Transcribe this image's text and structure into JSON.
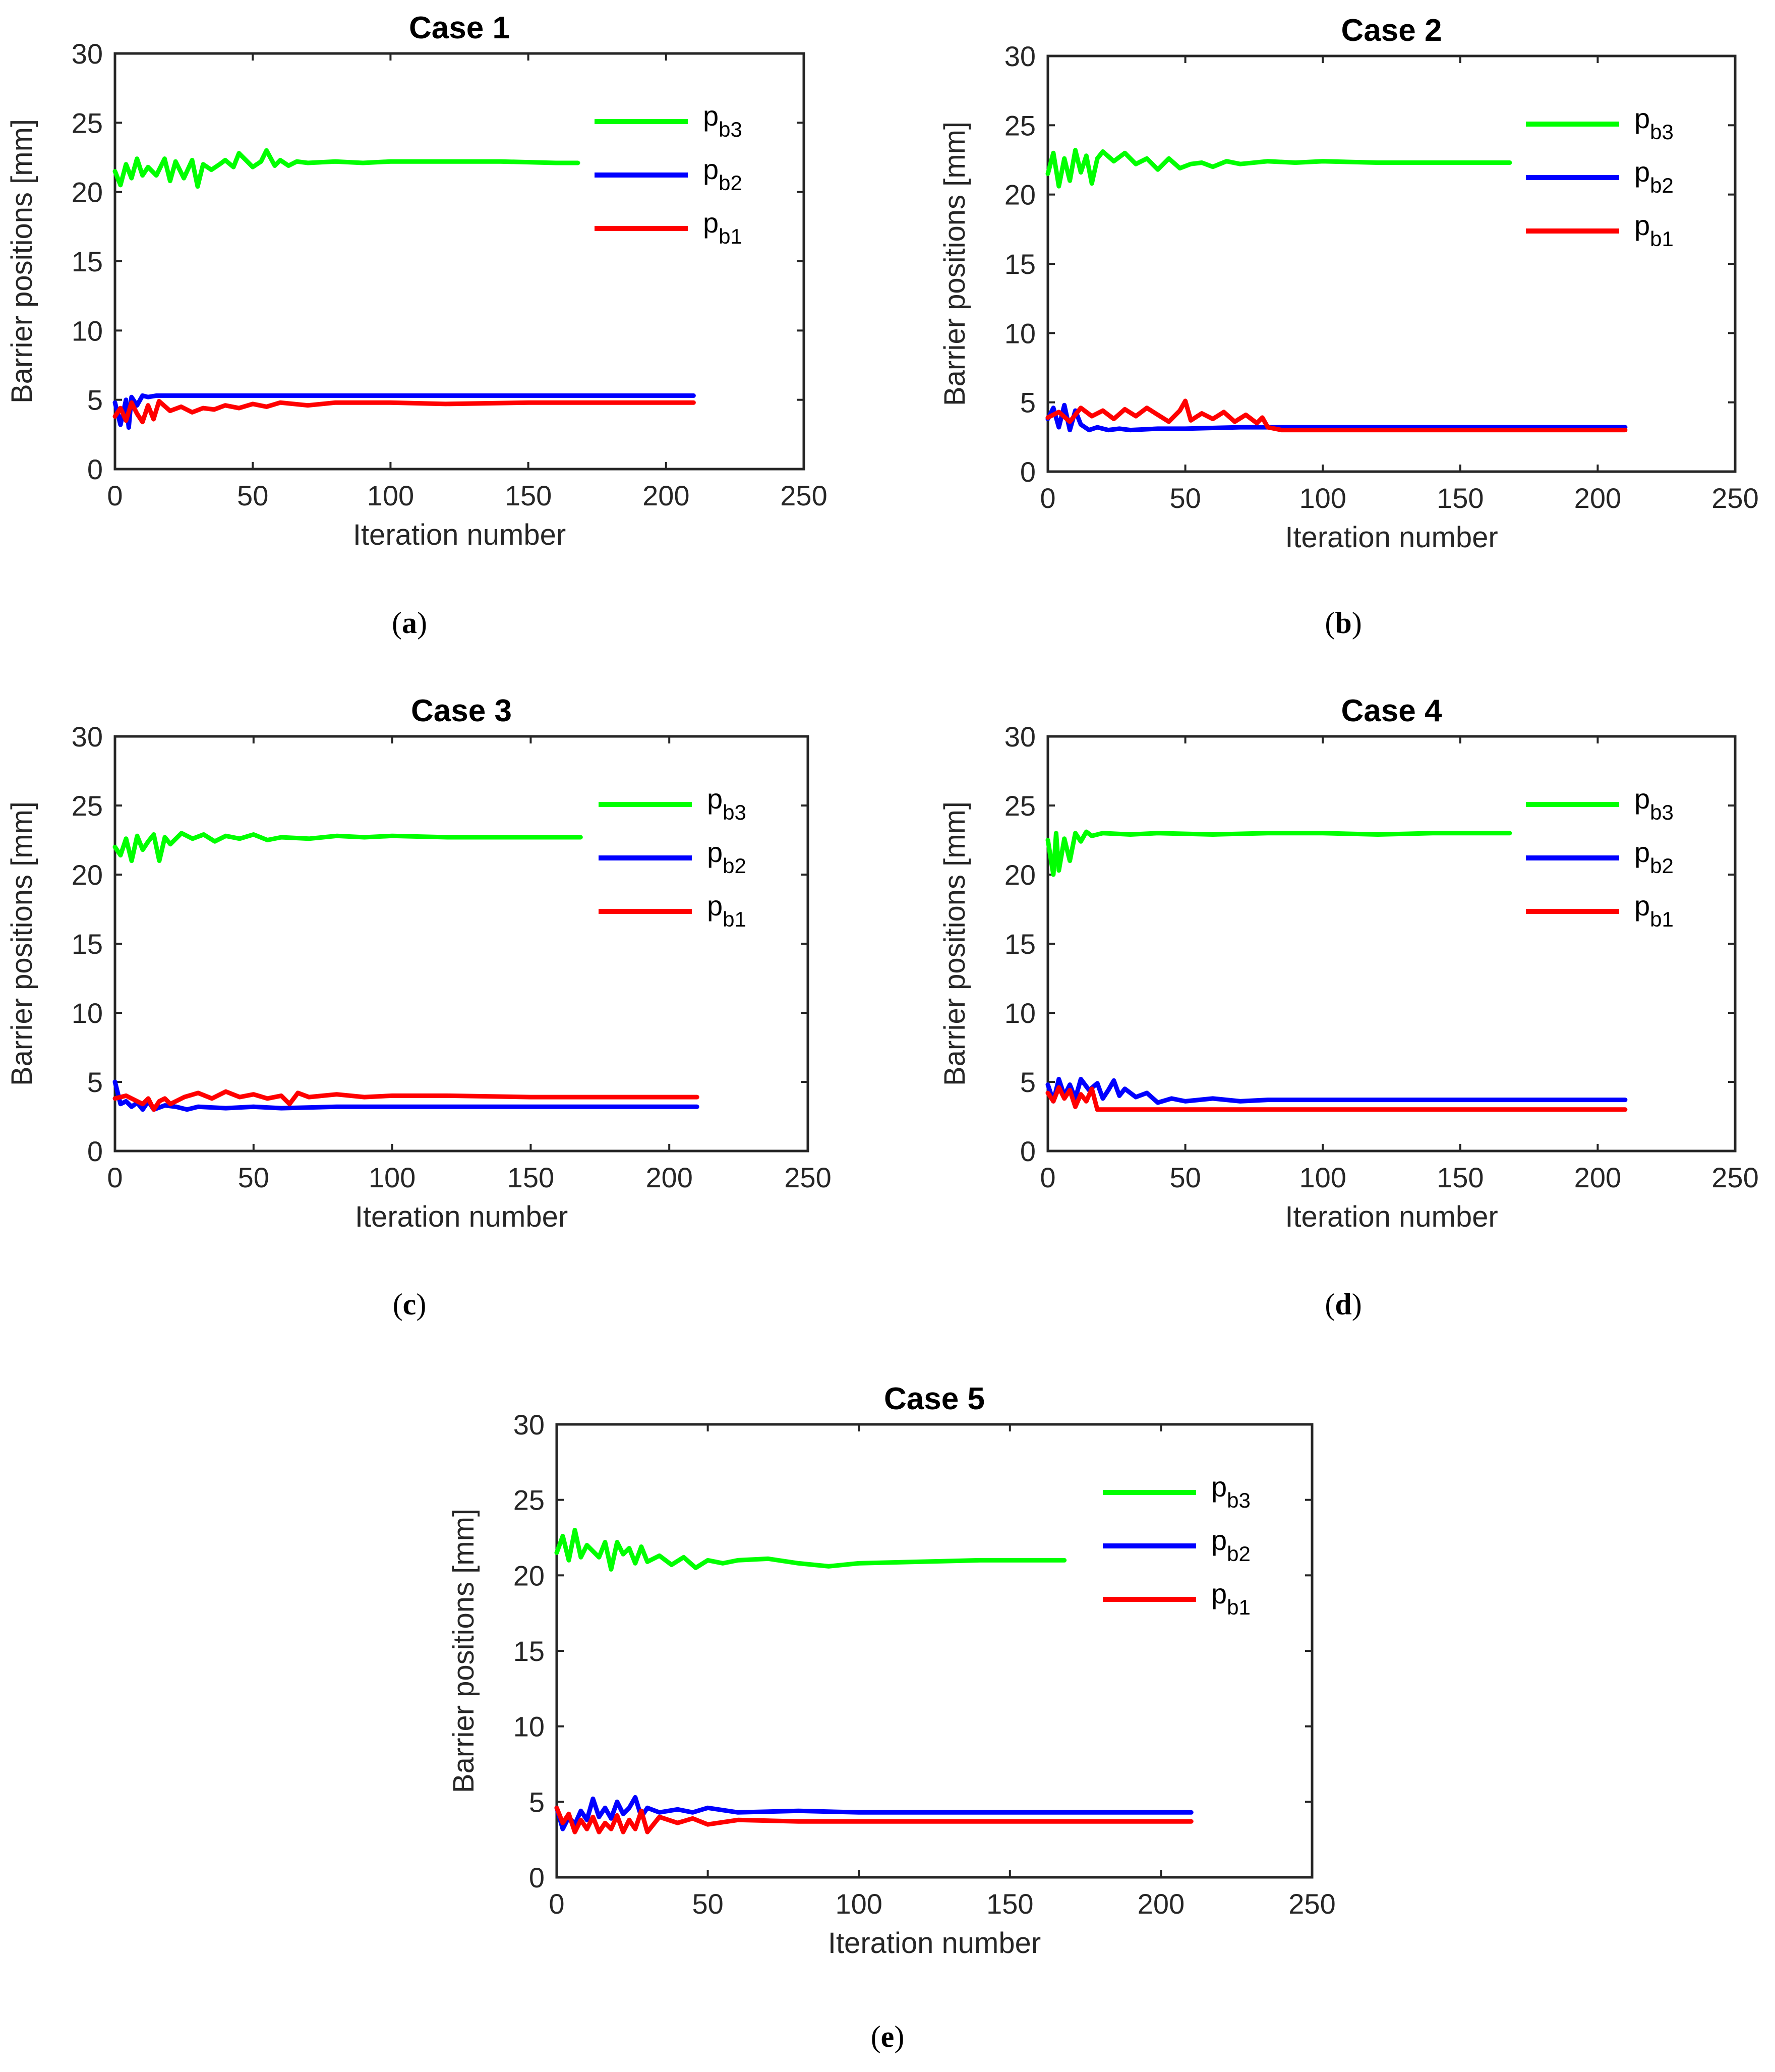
{
  "chart_data": [
    {
      "type": "line",
      "title": "Case 1",
      "caption": "a",
      "xlabel": "Iteration number",
      "ylabel": "Barrier positions [mm]",
      "xlim": [
        0,
        250
      ],
      "ylim": [
        0,
        30
      ],
      "xticks": [
        0,
        50,
        100,
        150,
        200,
        250
      ],
      "yticks": [
        0,
        5,
        10,
        15,
        20,
        25,
        30
      ],
      "legend": "top-right",
      "series": [
        {
          "name": "p_b3",
          "base": "p",
          "sub": "b3",
          "color": "#00ff00",
          "x": [
            0,
            2,
            4,
            6,
            8,
            10,
            12,
            15,
            18,
            20,
            22,
            25,
            28,
            30,
            32,
            35,
            38,
            40,
            43,
            45,
            48,
            50,
            53,
            55,
            58,
            60,
            63,
            66,
            70,
            80,
            90,
            100,
            120,
            140,
            160,
            168
          ],
          "y": [
            21.5,
            20.5,
            22.0,
            21.0,
            22.4,
            21.2,
            21.8,
            21.2,
            22.4,
            20.8,
            22.2,
            21.0,
            22.3,
            20.4,
            22.0,
            21.6,
            22.0,
            22.3,
            21.8,
            22.8,
            22.2,
            21.8,
            22.2,
            23.0,
            21.9,
            22.3,
            21.9,
            22.2,
            22.1,
            22.2,
            22.1,
            22.2,
            22.2,
            22.2,
            22.1,
            22.1
          ]
        },
        {
          "name": "p_b2",
          "base": "p",
          "sub": "b2",
          "color": "#0000ff",
          "x": [
            0,
            2,
            4,
            5,
            6,
            8,
            10,
            12,
            15,
            20,
            30,
            50,
            100,
            150,
            210
          ],
          "y": [
            4.8,
            3.2,
            5.0,
            3.0,
            5.2,
            4.6,
            5.3,
            5.2,
            5.3,
            5.3,
            5.3,
            5.3,
            5.3,
            5.3,
            5.3
          ]
        },
        {
          "name": "p_b1",
          "base": "p",
          "sub": "b1",
          "color": "#ff0000",
          "x": [
            0,
            2,
            4,
            6,
            8,
            10,
            12,
            14,
            16,
            20,
            24,
            28,
            32,
            36,
            40,
            45,
            50,
            55,
            60,
            70,
            80,
            100,
            120,
            150,
            210
          ],
          "y": [
            3.8,
            4.4,
            3.5,
            4.8,
            4.0,
            3.4,
            4.6,
            3.6,
            4.9,
            4.2,
            4.5,
            4.1,
            4.4,
            4.3,
            4.6,
            4.4,
            4.7,
            4.5,
            4.8,
            4.6,
            4.8,
            4.8,
            4.7,
            4.8,
            4.8
          ]
        }
      ]
    },
    {
      "type": "line",
      "title": "Case 2",
      "caption": "b",
      "xlabel": "Iteration number",
      "ylabel": "Barrier positions [mm]",
      "xlim": [
        0,
        250
      ],
      "ylim": [
        0,
        30
      ],
      "xticks": [
        0,
        50,
        100,
        150,
        200,
        250
      ],
      "yticks": [
        0,
        5,
        10,
        15,
        20,
        25,
        30
      ],
      "legend": "top-right",
      "series": [
        {
          "name": "p_b3",
          "base": "p",
          "sub": "b3",
          "color": "#00ff00",
          "x": [
            0,
            2,
            4,
            6,
            8,
            10,
            12,
            14,
            16,
            18,
            20,
            24,
            28,
            32,
            36,
            40,
            44,
            48,
            52,
            56,
            60,
            65,
            70,
            80,
            90,
            100,
            120,
            140,
            160,
            168
          ],
          "y": [
            21.5,
            23.0,
            20.6,
            22.6,
            21.0,
            23.2,
            21.6,
            22.8,
            20.8,
            22.6,
            23.1,
            22.4,
            23.0,
            22.2,
            22.6,
            21.8,
            22.6,
            21.9,
            22.2,
            22.3,
            22.0,
            22.4,
            22.2,
            22.4,
            22.3,
            22.4,
            22.3,
            22.3,
            22.3,
            22.3
          ]
        },
        {
          "name": "p_b2",
          "base": "p",
          "sub": "b2",
          "color": "#0000ff",
          "x": [
            0,
            2,
            4,
            6,
            8,
            10,
            12,
            15,
            18,
            22,
            26,
            30,
            40,
            50,
            70,
            90,
            120,
            150,
            210
          ],
          "y": [
            3.8,
            4.6,
            3.2,
            4.8,
            3.0,
            4.4,
            3.4,
            3.0,
            3.2,
            3.0,
            3.1,
            3.0,
            3.1,
            3.1,
            3.2,
            3.2,
            3.2,
            3.2,
            3.2
          ]
        },
        {
          "name": "p_b1",
          "base": "p",
          "sub": "b1",
          "color": "#ff0000",
          "x": [
            0,
            4,
            8,
            12,
            16,
            20,
            24,
            28,
            32,
            36,
            40,
            44,
            48,
            50,
            52,
            56,
            60,
            64,
            68,
            72,
            76,
            78,
            80,
            85,
            90,
            100,
            150,
            210
          ],
          "y": [
            3.9,
            4.3,
            3.6,
            4.6,
            4.0,
            4.4,
            3.8,
            4.5,
            4.0,
            4.6,
            4.1,
            3.6,
            4.4,
            5.1,
            3.7,
            4.2,
            3.8,
            4.3,
            3.6,
            4.1,
            3.5,
            3.9,
            3.2,
            3.0,
            3.0,
            3.0,
            3.0,
            3.0
          ]
        }
      ]
    },
    {
      "type": "line",
      "title": "Case 3",
      "caption": "c",
      "xlabel": "Iteration number",
      "ylabel": "Barrier positions [mm]",
      "xlim": [
        0,
        250
      ],
      "ylim": [
        0,
        30
      ],
      "xticks": [
        0,
        50,
        100,
        150,
        200,
        250
      ],
      "yticks": [
        0,
        5,
        10,
        15,
        20,
        25,
        30
      ],
      "legend": "top-right",
      "series": [
        {
          "name": "p_b3",
          "base": "p",
          "sub": "b3",
          "color": "#00ff00",
          "x": [
            0,
            2,
            4,
            6,
            8,
            10,
            12,
            14,
            16,
            18,
            20,
            24,
            28,
            32,
            36,
            40,
            45,
            50,
            55,
            60,
            70,
            80,
            90,
            100,
            120,
            140,
            160,
            168
          ],
          "y": [
            22.0,
            21.4,
            22.6,
            21.0,
            22.8,
            21.8,
            22.4,
            22.9,
            21.0,
            22.7,
            22.2,
            23.0,
            22.6,
            22.9,
            22.4,
            22.8,
            22.6,
            22.9,
            22.5,
            22.7,
            22.6,
            22.8,
            22.7,
            22.8,
            22.7,
            22.7,
            22.7,
            22.7
          ]
        },
        {
          "name": "p_b2",
          "base": "p",
          "sub": "b2",
          "color": "#0000ff",
          "x": [
            0,
            2,
            4,
            6,
            8,
            10,
            12,
            14,
            18,
            22,
            26,
            30,
            40,
            50,
            60,
            80,
            100,
            150,
            210
          ],
          "y": [
            5.0,
            3.4,
            3.6,
            3.2,
            3.5,
            3.0,
            3.6,
            3.0,
            3.3,
            3.2,
            3.0,
            3.2,
            3.1,
            3.2,
            3.1,
            3.2,
            3.2,
            3.2,
            3.2
          ]
        },
        {
          "name": "p_b1",
          "base": "p",
          "sub": "b1",
          "color": "#ff0000",
          "x": [
            0,
            4,
            8,
            10,
            12,
            14,
            16,
            18,
            20,
            25,
            30,
            35,
            40,
            45,
            50,
            55,
            60,
            63,
            66,
            70,
            80,
            90,
            100,
            120,
            150,
            210
          ],
          "y": [
            3.8,
            4.0,
            3.6,
            3.4,
            3.8,
            3.0,
            3.6,
            3.8,
            3.4,
            3.9,
            4.2,
            3.8,
            4.3,
            3.9,
            4.1,
            3.8,
            4.0,
            3.4,
            4.2,
            3.9,
            4.1,
            3.9,
            4.0,
            4.0,
            3.9,
            3.9
          ]
        }
      ]
    },
    {
      "type": "line",
      "title": "Case 4",
      "caption": "d",
      "xlabel": "Iteration number",
      "ylabel": "Barrier positions [mm]",
      "xlim": [
        0,
        250
      ],
      "ylim": [
        0,
        30
      ],
      "xticks": [
        0,
        50,
        100,
        150,
        200,
        250
      ],
      "yticks": [
        0,
        5,
        10,
        15,
        20,
        25,
        30
      ],
      "legend": "top-right",
      "series": [
        {
          "name": "p_b3",
          "base": "p",
          "sub": "b3",
          "color": "#00ff00",
          "x": [
            0,
            2,
            3,
            4,
            6,
            8,
            10,
            12,
            14,
            16,
            20,
            30,
            40,
            60,
            80,
            100,
            120,
            140,
            160,
            168
          ],
          "y": [
            22.5,
            20.0,
            23.0,
            20.3,
            22.6,
            21.0,
            23.0,
            22.4,
            23.1,
            22.8,
            23.0,
            22.9,
            23.0,
            22.9,
            23.0,
            23.0,
            22.9,
            23.0,
            23.0,
            23.0
          ]
        },
        {
          "name": "p_b2",
          "base": "p",
          "sub": "b2",
          "color": "#0000ff",
          "x": [
            0,
            2,
            4,
            6,
            8,
            10,
            12,
            15,
            18,
            20,
            22,
            24,
            26,
            28,
            32,
            36,
            40,
            45,
            50,
            60,
            70,
            80,
            100,
            150,
            210
          ],
          "y": [
            4.8,
            3.6,
            5.2,
            4.0,
            4.8,
            3.8,
            5.2,
            4.4,
            4.9,
            3.8,
            4.4,
            5.1,
            4.0,
            4.5,
            3.9,
            4.2,
            3.5,
            3.8,
            3.6,
            3.8,
            3.6,
            3.7,
            3.7,
            3.7,
            3.7
          ]
        },
        {
          "name": "p_b1",
          "base": "p",
          "sub": "b1",
          "color": "#ff0000",
          "x": [
            0,
            2,
            4,
            6,
            8,
            10,
            12,
            14,
            16,
            18,
            20,
            30,
            50,
            100,
            150,
            210
          ],
          "y": [
            4.2,
            3.6,
            4.6,
            3.8,
            4.4,
            3.2,
            4.1,
            3.6,
            4.5,
            3.0,
            3.0,
            3.0,
            3.0,
            3.0,
            3.0,
            3.0
          ]
        }
      ]
    },
    {
      "type": "line",
      "title": "Case 5",
      "caption": "e",
      "xlabel": "Iteration number",
      "ylabel": "Barrier positions [mm]",
      "xlim": [
        0,
        250
      ],
      "ylim": [
        0,
        30
      ],
      "xticks": [
        0,
        50,
        100,
        150,
        200,
        250
      ],
      "yticks": [
        0,
        5,
        10,
        15,
        20,
        25,
        30
      ],
      "legend": "top-right",
      "series": [
        {
          "name": "p_b3",
          "base": "p",
          "sub": "b3",
          "color": "#00ff00",
          "x": [
            0,
            2,
            4,
            6,
            8,
            10,
            12,
            14,
            16,
            18,
            20,
            22,
            24,
            26,
            28,
            30,
            34,
            38,
            42,
            46,
            50,
            55,
            60,
            70,
            80,
            90,
            100,
            120,
            140,
            160,
            168
          ],
          "y": [
            21.5,
            22.6,
            21.0,
            23.0,
            21.2,
            22.0,
            21.6,
            21.2,
            22.2,
            20.4,
            22.2,
            21.4,
            21.8,
            20.8,
            21.9,
            20.9,
            21.3,
            20.7,
            21.2,
            20.5,
            21.0,
            20.8,
            21.0,
            21.1,
            20.8,
            20.6,
            20.8,
            20.9,
            21.0,
            21.0,
            21.0
          ]
        },
        {
          "name": "p_b2",
          "base": "p",
          "sub": "b2",
          "color": "#0000ff",
          "x": [
            0,
            2,
            4,
            6,
            8,
            10,
            12,
            14,
            16,
            18,
            20,
            22,
            24,
            26,
            28,
            30,
            34,
            40,
            45,
            50,
            60,
            80,
            100,
            150,
            210
          ],
          "y": [
            4.6,
            3.2,
            4.0,
            3.5,
            4.4,
            3.8,
            5.2,
            4.0,
            4.6,
            3.9,
            5.0,
            4.2,
            4.6,
            5.3,
            4.0,
            4.6,
            4.3,
            4.5,
            4.3,
            4.6,
            4.3,
            4.4,
            4.3,
            4.3,
            4.3
          ]
        },
        {
          "name": "p_b1",
          "base": "p",
          "sub": "b1",
          "color": "#ff0000",
          "x": [
            0,
            2,
            4,
            6,
            8,
            10,
            12,
            14,
            16,
            18,
            20,
            22,
            24,
            26,
            28,
            30,
            34,
            40,
            45,
            50,
            60,
            80,
            100,
            150,
            210
          ],
          "y": [
            4.6,
            3.6,
            4.2,
            3.0,
            3.8,
            3.2,
            4.0,
            3.0,
            3.6,
            3.2,
            4.1,
            3.0,
            3.8,
            3.2,
            4.4,
            3.0,
            4.0,
            3.6,
            3.9,
            3.5,
            3.8,
            3.7,
            3.7,
            3.7,
            3.7
          ]
        }
      ]
    }
  ]
}
